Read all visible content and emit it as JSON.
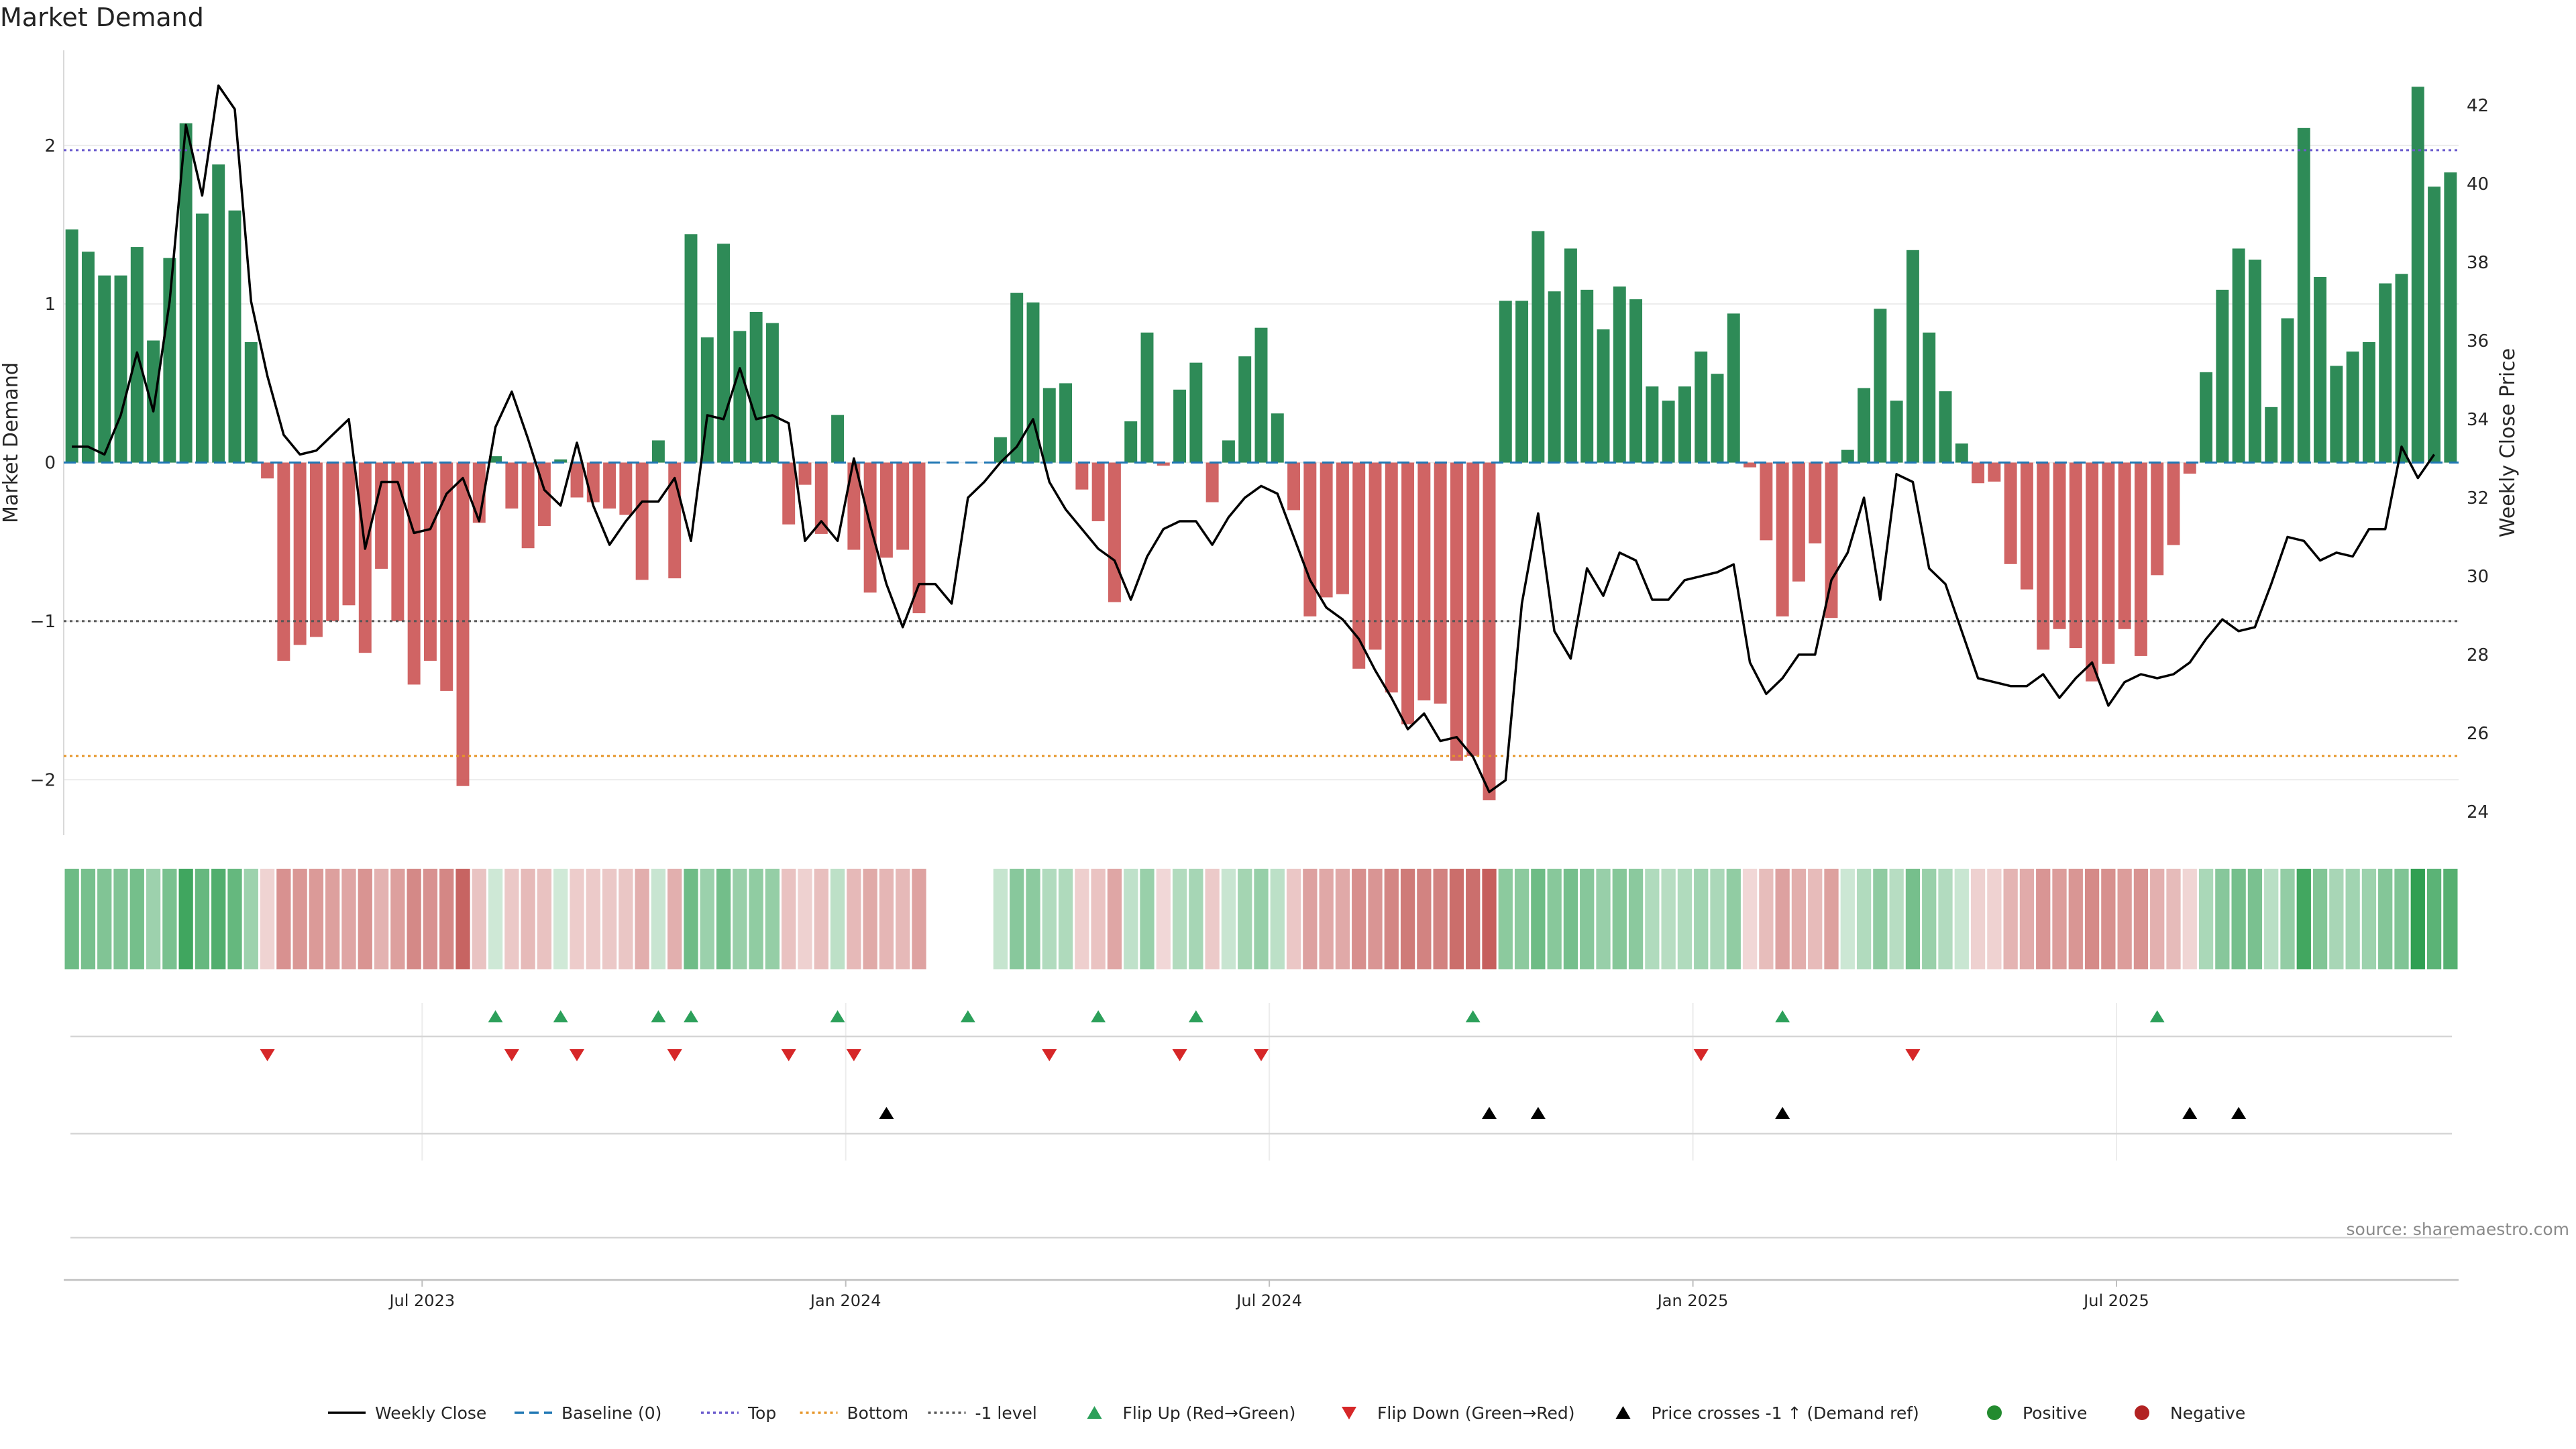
{
  "chart_data": {
    "type": "bar",
    "title": "Market Demand",
    "ylabel": "Market Demand",
    "y2label": "Weekly Close Price",
    "ylim": [
      -2.35,
      2.6
    ],
    "y2lim": [
      23.4,
      43.4
    ],
    "yticks": [
      2,
      1,
      0,
      -1,
      -2
    ],
    "y2ticks": [
      42,
      40,
      38,
      36,
      34,
      32,
      30,
      28,
      26,
      24
    ],
    "x_ticks": [
      "Jul 2023",
      "Jan 2024",
      "Jul 2024",
      "Jan 2025",
      "Jul 2025"
    ],
    "x_tick_week_index": [
      22,
      48,
      74,
      100,
      126
    ],
    "reference_lines": {
      "top": 1.97,
      "bottom": -1.85,
      "minus_one": -1.0
    },
    "demand": [
      1.47,
      1.33,
      1.18,
      1.18,
      1.36,
      0.77,
      1.29,
      2.14,
      1.57,
      1.88,
      1.59,
      0.76,
      -0.1,
      -1.25,
      -1.15,
      -1.1,
      -1.0,
      -0.9,
      -1.2,
      -0.67,
      -1.0,
      -1.4,
      -1.25,
      -1.44,
      -2.04,
      -0.38,
      0.04,
      -0.29,
      -0.54,
      -0.4,
      0.02,
      -0.22,
      -0.25,
      -0.29,
      -0.33,
      -0.74,
      0.14,
      -0.73,
      1.44,
      0.79,
      1.38,
      0.83,
      0.95,
      0.88,
      -0.39,
      -0.14,
      -0.45,
      0.3,
      -0.55,
      -0.82,
      -0.6,
      -0.55,
      -0.95,
      0.0,
      0.0,
      0.0,
      0.0,
      0.16,
      1.07,
      1.01,
      0.47,
      0.5,
      -0.17,
      -0.37,
      -0.88,
      0.26,
      0.82,
      -0.02,
      0.46,
      0.63,
      -0.25,
      0.14,
      0.67,
      0.85,
      0.31,
      -0.3,
      -0.97,
      -0.85,
      -0.83,
      -1.3,
      -1.18,
      -1.45,
      -1.65,
      -1.5,
      -1.52,
      -1.88,
      -1.85,
      -2.13,
      1.02,
      1.02,
      1.46,
      1.08,
      1.35,
      1.09,
      0.84,
      1.11,
      1.03,
      0.48,
      0.39,
      0.48,
      0.7,
      0.56,
      0.94,
      -0.03,
      -0.49,
      -0.97,
      -0.75,
      -0.51,
      -0.98,
      0.08,
      0.47,
      0.97,
      0.39,
      1.34,
      0.82,
      0.45,
      0.12,
      -0.13,
      -0.12,
      -0.64,
      -0.8,
      -1.18,
      -1.05,
      -1.17,
      -1.38,
      -1.27,
      -1.05,
      -1.22,
      -0.71,
      -0.52,
      -0.07,
      0.57,
      1.09,
      1.35,
      1.28,
      0.35,
      0.91,
      2.11,
      1.17,
      0.61,
      0.7,
      0.76,
      1.13,
      1.19,
      2.37,
      1.74,
      1.83
    ],
    "weekly_close": [
      33.3,
      33.3,
      33.1,
      34.1,
      35.7,
      34.2,
      37.0,
      41.5,
      39.7,
      42.5,
      41.9,
      37.0,
      35.1,
      33.6,
      33.1,
      33.2,
      33.6,
      34.0,
      30.7,
      32.4,
      32.4,
      31.1,
      31.2,
      32.1,
      32.5,
      31.4,
      33.8,
      34.7,
      33.5,
      32.2,
      31.8,
      33.4,
      31.8,
      30.8,
      31.4,
      31.9,
      31.9,
      32.5,
      30.9,
      34.1,
      34.0,
      35.3,
      34.0,
      34.1,
      33.9,
      30.9,
      31.4,
      30.9,
      33.0,
      31.3,
      29.8,
      28.7,
      29.8,
      29.8,
      29.3,
      32.0,
      32.4,
      32.9,
      33.3,
      34.0,
      32.4,
      31.7,
      31.2,
      30.7,
      30.4,
      29.4,
      30.5,
      31.2,
      31.4,
      31.4,
      30.8,
      31.5,
      32.0,
      32.3,
      32.1,
      31.0,
      29.9,
      29.2,
      28.9,
      28.4,
      27.6,
      26.9,
      26.1,
      26.5,
      25.8,
      25.9,
      25.4,
      24.5,
      24.8,
      29.3,
      31.6,
      28.6,
      27.9,
      30.2,
      29.5,
      30.6,
      30.4,
      29.4,
      29.4,
      29.9,
      30.0,
      30.1,
      30.3,
      27.8,
      27.0,
      27.4,
      28.0,
      28.0,
      29.9,
      30.6,
      32.0,
      29.4,
      32.6,
      32.4,
      30.2,
      29.8,
      28.6,
      27.4,
      27.3,
      27.2,
      27.2,
      27.5,
      26.9,
      27.4,
      27.8,
      26.7,
      27.3,
      27.5,
      27.4,
      27.5,
      27.8,
      28.4,
      28.9,
      28.6,
      28.7,
      29.8,
      31.0,
      30.9,
      30.4,
      30.6,
      30.5,
      31.2,
      31.2,
      33.3,
      32.5,
      33.1
    ],
    "signals": {
      "flip_up_weeks": [
        26,
        30,
        36,
        38,
        47,
        55,
        63,
        69,
        86,
        105,
        128
      ],
      "flip_down_weeks": [
        12,
        27,
        31,
        37,
        44,
        48,
        60,
        68,
        73,
        100,
        113
      ],
      "price_cross_weeks": [
        50,
        87,
        90,
        105,
        130,
        133
      ]
    },
    "legend": [
      {
        "label": "Weekly Close",
        "kind": "line-solid",
        "color": "#000000"
      },
      {
        "label": "Baseline (0)",
        "kind": "line-dashed",
        "color": "#1f77b4"
      },
      {
        "label": "Top",
        "kind": "line-dotted",
        "color": "#6a5acd"
      },
      {
        "label": "Bottom",
        "kind": "line-dotted",
        "color": "#e69528"
      },
      {
        "label": "-1 level",
        "kind": "line-dotted",
        "color": "#555555"
      },
      {
        "label": "Flip Up (Red→Green)",
        "kind": "tri-up",
        "color": "#2ca05a"
      },
      {
        "label": "Flip Down (Green→Red)",
        "kind": "tri-down",
        "color": "#d62728"
      },
      {
        "label": "Price crosses -1 ↑ (Demand ref)",
        "kind": "tri-up",
        "color": "#000000"
      },
      {
        "label": "Positive",
        "kind": "dot",
        "color": "#238b2f"
      },
      {
        "label": "Negative",
        "kind": "dot",
        "color": "#b22222"
      }
    ],
    "colors": {
      "positive_bar": "#2e8b57",
      "negative_bar": "#cd5c5c",
      "grid": "#e8e8e8",
      "axis": "#bfbfbf"
    }
  },
  "source": "source: sharemaestro.com"
}
